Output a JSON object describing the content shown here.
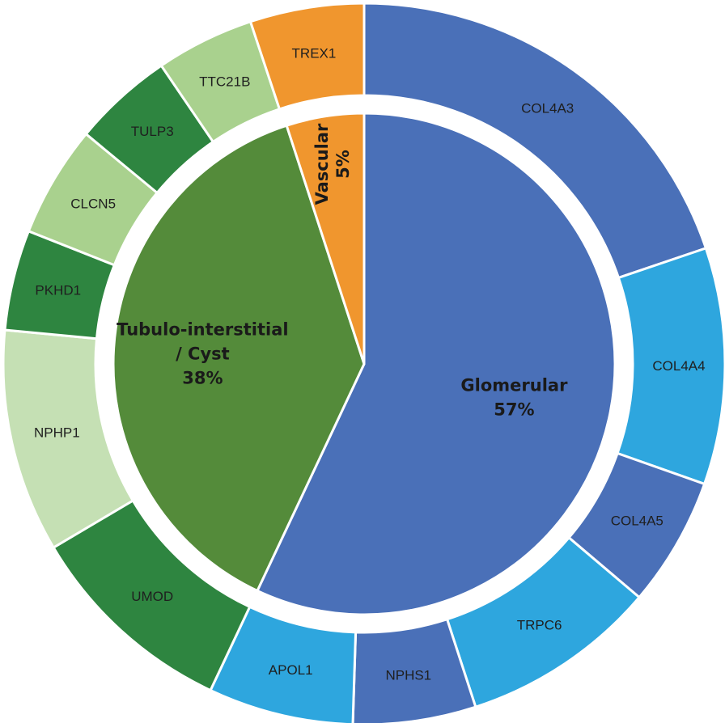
{
  "chart_data": {
    "type": "pie",
    "inner_ring": [
      {
        "label": "Glomerular",
        "percent_label": "57%",
        "value": 57,
        "color": "#4a70b8"
      },
      {
        "label": "Tubulo-interstitial / Cyst",
        "label_lines": [
          "Tubulo-interstitial",
          "/ Cyst"
        ],
        "percent_label": "38%",
        "value": 38,
        "color": "#548b3a"
      },
      {
        "label": "Vascular",
        "percent_label": "5%",
        "value": 5,
        "color": "#f0962e"
      }
    ],
    "outer_ring": [
      {
        "label": "COL4A3",
        "value": 19.8,
        "group": "Glomerular",
        "color": "#4a70b8"
      },
      {
        "label": "COL4A4",
        "value": 10.6,
        "group": "Glomerular",
        "color": "#2ea6de"
      },
      {
        "label": "COL4A5",
        "value": 5.8,
        "group": "Glomerular",
        "color": "#4a70b8"
      },
      {
        "label": "TRPC6",
        "value": 8.8,
        "group": "Glomerular",
        "color": "#2ea6de"
      },
      {
        "label": "NPHS1",
        "value": 5.5,
        "group": "Glomerular",
        "color": "#4a70b8"
      },
      {
        "label": "APOL1",
        "value": 6.5,
        "group": "Glomerular",
        "color": "#2ea6de"
      },
      {
        "label": "UMOD",
        "value": 9.5,
        "group": "Tubulo-interstitial / Cyst",
        "color": "#2e8540"
      },
      {
        "label": "NPHP1",
        "value": 10.0,
        "group": "Tubulo-interstitial / Cyst",
        "color": "#c5e0b4"
      },
      {
        "label": "PKHD1",
        "value": 4.5,
        "group": "Tubulo-interstitial / Cyst",
        "color": "#2e8540"
      },
      {
        "label": "CLCN5",
        "value": 5.0,
        "group": "Tubulo-interstitial / Cyst",
        "color": "#a9d18e"
      },
      {
        "label": "TULP3",
        "value": 4.5,
        "group": "Tubulo-interstitial / Cyst",
        "color": "#2e8540"
      },
      {
        "label": "TTC21B",
        "value": 4.4,
        "group": "Tubulo-interstitial / Cyst",
        "color": "#a9d18e"
      },
      {
        "label": "TREX1",
        "value": 5.1,
        "group": "Vascular",
        "color": "#f0962e"
      }
    ]
  }
}
